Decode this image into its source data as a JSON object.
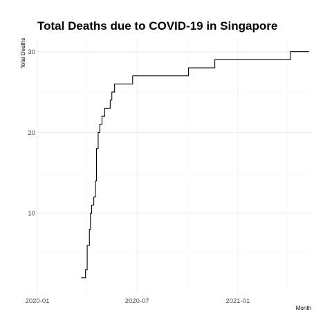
{
  "chart_data": {
    "type": "line",
    "title": "Total Deaths due to COVID-19 in Singapore",
    "xlabel": "Month",
    "ylabel": "Total Deaths",
    "x_ticks": [
      {
        "date": "2020-01-01",
        "label": "2020-01"
      },
      {
        "date": "2020-07-01",
        "label": "2020-07"
      },
      {
        "date": "2021-01-01",
        "label": "2021-01"
      }
    ],
    "y_ticks": [
      10,
      20,
      30
    ],
    "xlim": [
      "2020-01-01",
      "2021-05-15"
    ],
    "ylim": [
      0,
      31.6
    ],
    "grid": true,
    "step": true,
    "series": [
      {
        "color": "#000000",
        "points": [
          {
            "x": "2020-03-21",
            "y": 2
          },
          {
            "x": "2020-03-29",
            "y": 3
          },
          {
            "x": "2020-04-01",
            "y": 6
          },
          {
            "x": "2020-04-05",
            "y": 8
          },
          {
            "x": "2020-04-07",
            "y": 10
          },
          {
            "x": "2020-04-09",
            "y": 11
          },
          {
            "x": "2020-04-13",
            "y": 12
          },
          {
            "x": "2020-04-16",
            "y": 14
          },
          {
            "x": "2020-04-18",
            "y": 18
          },
          {
            "x": "2020-04-21",
            "y": 20
          },
          {
            "x": "2020-04-24",
            "y": 21
          },
          {
            "x": "2020-04-28",
            "y": 22
          },
          {
            "x": "2020-05-03",
            "y": 23
          },
          {
            "x": "2020-05-13",
            "y": 24
          },
          {
            "x": "2020-05-16",
            "y": 25
          },
          {
            "x": "2020-05-21",
            "y": 26
          },
          {
            "x": "2020-06-23",
            "y": 27
          },
          {
            "x": "2020-10-03",
            "y": 28
          },
          {
            "x": "2020-11-20",
            "y": 29
          },
          {
            "x": "2021-04-07",
            "y": 30
          },
          {
            "x": "2021-05-11",
            "y": 30
          }
        ]
      }
    ]
  }
}
